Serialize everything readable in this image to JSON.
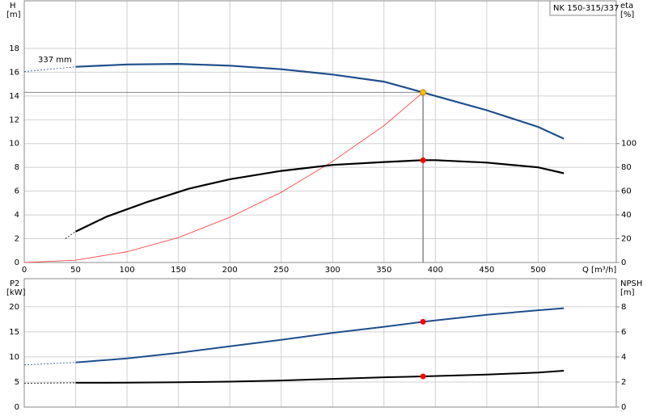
{
  "chart_data": [
    {
      "type": "line",
      "model": "NK 150-315/337",
      "annotation": "337 mm",
      "ylabel": [
        "H",
        "[m]"
      ],
      "y2label": [
        "eta",
        "[%]"
      ],
      "xlabel": "Q [m³/h]",
      "xlim": [
        0,
        576
      ],
      "xticks": [
        0,
        50,
        100,
        150,
        200,
        250,
        300,
        350,
        400,
        450,
        500
      ],
      "ylim": [
        0,
        22
      ],
      "yticks": [
        0,
        2,
        4,
        6,
        8,
        10,
        12,
        14,
        16,
        18
      ],
      "y2lim": [
        0,
        220
      ],
      "y2ticks": [
        0,
        20,
        40,
        60,
        80,
        100
      ],
      "grid": true,
      "series": [
        {
          "color": "#1f4e8c",
          "width": 2.2,
          "dashed": true,
          "x": [
            0,
            50
          ],
          "values": [
            16.05,
            16.45
          ]
        },
        {
          "color": "#1f4e8c",
          "width": 2.2,
          "x": [
            50,
            100,
            150,
            200,
            250,
            300,
            350,
            388,
            400,
            450,
            500,
            525
          ],
          "values": [
            16.45,
            16.65,
            16.7,
            16.55,
            16.25,
            15.8,
            15.2,
            14.3,
            14.0,
            12.8,
            11.4,
            10.4
          ]
        },
        {
          "color": "#ff3030",
          "width": 0.8,
          "x": [
            0,
            50,
            100,
            150,
            200,
            250,
            300,
            350,
            388
          ],
          "values": [
            0,
            0.2,
            0.9,
            2.1,
            3.8,
            5.9,
            8.5,
            11.5,
            14.3
          ]
        },
        {
          "color": "#000000",
          "width": 2.2,
          "dashed": true,
          "axis": "y2",
          "x": [
            40,
            50
          ],
          "values": [
            20,
            26
          ]
        },
        {
          "color": "#000000",
          "width": 2.2,
          "axis": "y2",
          "x": [
            50,
            80,
            120,
            160,
            200,
            250,
            300,
            350,
            388,
            400,
            450,
            500,
            525
          ],
          "values": [
            26,
            38.5,
            51,
            62,
            70,
            77,
            82,
            84.5,
            86,
            86,
            84,
            80,
            75
          ]
        }
      ],
      "markers": [
        {
          "x": 388,
          "y": 14.3,
          "color": "#ffc000"
        },
        {
          "x": 388,
          "y": 86,
          "color": "#ff0000",
          "axis": "y2"
        }
      ]
    },
    {
      "type": "line",
      "ylabel": [
        "P2",
        "[kW]"
      ],
      "y2label": [
        "NPSH",
        "[m]"
      ],
      "xlim": [
        0,
        576
      ],
      "ylim": [
        0,
        25.6
      ],
      "yticks": [
        0,
        5,
        10,
        15,
        20
      ],
      "y2lim": [
        0,
        10.25
      ],
      "y2ticks": [
        0,
        2,
        4,
        6,
        8
      ],
      "grid": true,
      "series": [
        {
          "color": "#1f4e8c",
          "width": 2,
          "dashed": true,
          "x": [
            0,
            50
          ],
          "values": [
            8.4,
            8.9
          ]
        },
        {
          "color": "#1f4e8c",
          "width": 2,
          "x": [
            50,
            100,
            150,
            200,
            250,
            300,
            350,
            388,
            450,
            500,
            525
          ],
          "values": [
            8.9,
            9.7,
            10.8,
            12.1,
            13.4,
            14.8,
            16.0,
            17.0,
            18.4,
            19.3,
            19.7
          ]
        },
        {
          "color": "#000000",
          "width": 2,
          "dashed": true,
          "axis": "y2",
          "x": [
            0,
            50
          ],
          "values": [
            1.9,
            1.94
          ]
        },
        {
          "color": "#000000",
          "width": 2,
          "axis": "y2",
          "x": [
            50,
            100,
            150,
            200,
            250,
            300,
            350,
            388,
            450,
            500,
            525
          ],
          "values": [
            1.94,
            1.95,
            1.98,
            2.03,
            2.12,
            2.25,
            2.38,
            2.45,
            2.6,
            2.75,
            2.9
          ]
        }
      ],
      "markers": [
        {
          "x": 388,
          "y": 17.0,
          "color": "#ff0000"
        },
        {
          "x": 388,
          "y": 2.45,
          "color": "#ff0000",
          "axis": "y2"
        }
      ]
    }
  ]
}
